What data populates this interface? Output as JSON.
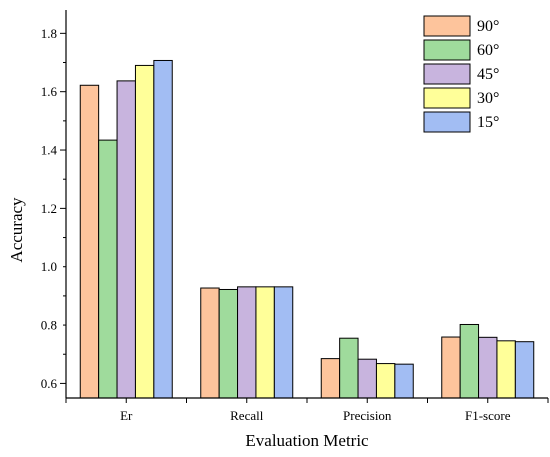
{
  "chart_data": {
    "type": "bar",
    "title": "",
    "xlabel": "Evaluation Metric",
    "ylabel": "Accuracy",
    "categories": [
      "Er",
      "Recall",
      "Precision",
      "F1-score"
    ],
    "ylim": [
      0.55,
      1.88
    ],
    "yticks": [
      0.6,
      0.8,
      1.0,
      1.2,
      1.4,
      1.6,
      1.8
    ],
    "ytick_labels": [
      "0.6",
      "0.8",
      "1.0",
      "1.2",
      "1.4",
      "1.6",
      "1.8"
    ],
    "grid": false,
    "legend_position": "top-right",
    "series": [
      {
        "name": "90°",
        "color": "#fdc49c",
        "values": [
          1.622,
          0.927,
          0.685,
          0.759
        ]
      },
      {
        "name": "60°",
        "color": "#9fdb9c",
        "values": [
          1.434,
          0.922,
          0.755,
          0.802
        ]
      },
      {
        "name": "45°",
        "color": "#c8b4de",
        "values": [
          1.637,
          0.931,
          0.683,
          0.758
        ]
      },
      {
        "name": "30°",
        "color": "#ffff99",
        "values": [
          1.69,
          0.931,
          0.668,
          0.746
        ]
      },
      {
        "name": "15°",
        "color": "#a2bdf3",
        "values": [
          1.707,
          0.931,
          0.666,
          0.743
        ]
      }
    ]
  }
}
